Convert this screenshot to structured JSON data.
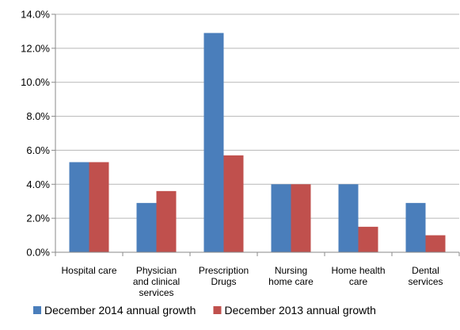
{
  "chart_data": {
    "type": "bar",
    "categories": [
      [
        "Hospital care"
      ],
      [
        "Physician",
        "and clinical",
        "services"
      ],
      [
        "Prescription",
        "Drugs"
      ],
      [
        "Nursing",
        "home care"
      ],
      [
        "Home health",
        "care"
      ],
      [
        "Dental",
        "services"
      ]
    ],
    "series": [
      {
        "name": "December 2014 annual growth",
        "color": "#4a7ebb",
        "values": [
          5.3,
          2.9,
          12.9,
          4.0,
          4.0,
          2.9
        ]
      },
      {
        "name": "December 2013 annual growth",
        "color": "#c0504d",
        "values": [
          5.3,
          3.6,
          5.7,
          4.0,
          1.5,
          1.0
        ]
      }
    ],
    "ylim": [
      0,
      14
    ],
    "ytick_step": 2,
    "ytick_format": "percent-1dp",
    "grid": true,
    "legend": "bottom",
    "xlabel": "",
    "ylabel": "",
    "title": ""
  }
}
